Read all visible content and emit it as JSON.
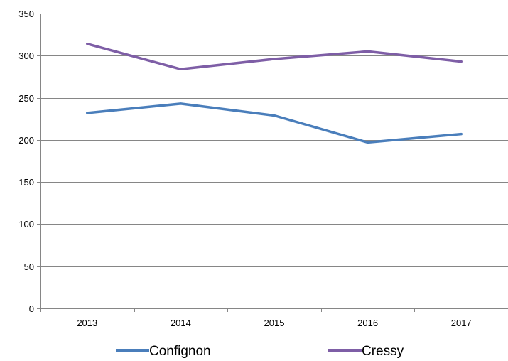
{
  "chart_data": {
    "type": "line",
    "categories": [
      "2013",
      "2014",
      "2015",
      "2016",
      "2017"
    ],
    "series": [
      {
        "name": "Confignon",
        "values": [
          232,
          243,
          229,
          197,
          207
        ],
        "color": "#4a7ebb"
      },
      {
        "name": "Cressy",
        "values": [
          314,
          284,
          296,
          305,
          293
        ],
        "color": "#7e5ea6"
      }
    ],
    "y_ticks": [
      "0",
      "50",
      "100",
      "150",
      "200",
      "250",
      "300",
      "350"
    ],
    "ylim": [
      0,
      350
    ],
    "grid": "horizontal",
    "legend_position": "bottom"
  }
}
